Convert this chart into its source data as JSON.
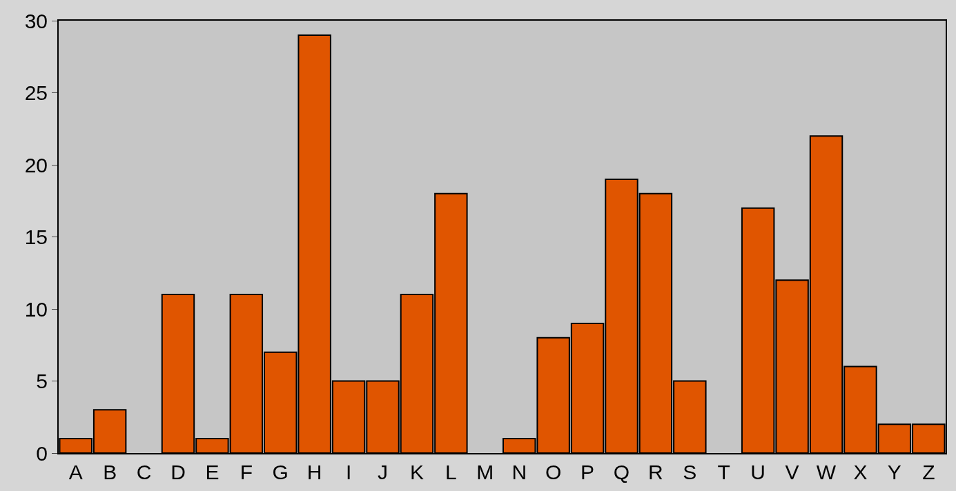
{
  "chart_data": {
    "type": "bar",
    "categories": [
      "A",
      "B",
      "C",
      "D",
      "E",
      "F",
      "G",
      "H",
      "I",
      "J",
      "K",
      "L",
      "M",
      "N",
      "O",
      "P",
      "Q",
      "R",
      "S",
      "T",
      "U",
      "V",
      "W",
      "X",
      "Y",
      "Z"
    ],
    "values": [
      1,
      3,
      0,
      11,
      1,
      11,
      7,
      29,
      5,
      5,
      11,
      18,
      0,
      1,
      8,
      9,
      19,
      18,
      5,
      0,
      17,
      12,
      22,
      6,
      2,
      2
    ],
    "color": "#e05500",
    "ylim": [
      0,
      30
    ],
    "yticks": [
      0,
      5,
      10,
      15,
      20,
      25,
      30
    ]
  }
}
